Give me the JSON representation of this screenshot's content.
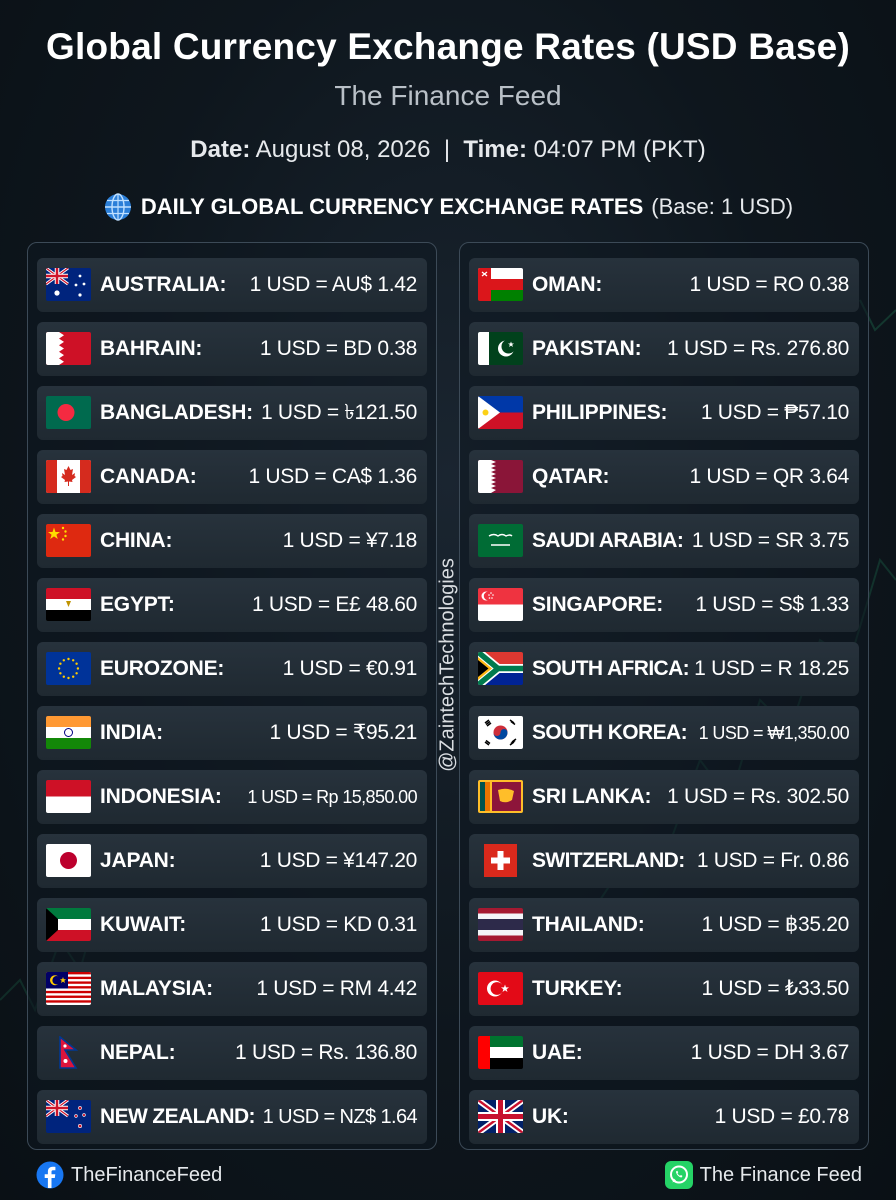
{
  "header": {
    "title": "Global Currency Exchange Rates (USD Base)",
    "subtitle": "The Finance Feed",
    "date_label": "Date:",
    "date_value": "August 08, 2026",
    "separator": "|",
    "time_label": "Time:",
    "time_value": "04:07 PM (PKT)",
    "headline": "DAILY GLOBAL CURRENCY EXCHANGE RATES",
    "headline_base": "(Base: 1 USD)",
    "headline_icon": "globe-icon"
  },
  "left_column": [
    {
      "country": "AUSTRALIA:",
      "rate": "1 USD = AU$ 1.42",
      "flag": "australia"
    },
    {
      "country": "BAHRAIN:",
      "rate": "1 USD = BD 0.38",
      "flag": "bahrain"
    },
    {
      "country": "BANGLADESH:",
      "rate": "1 USD = ৳121.50",
      "flag": "bangladesh"
    },
    {
      "country": "CANADA:",
      "rate": "1 USD = CA$ 1.36",
      "flag": "canada"
    },
    {
      "country": "CHINA:",
      "rate": "1 USD = ¥7.18",
      "flag": "china"
    },
    {
      "country": "EGYPT:",
      "rate": "1 USD = E£ 48.60",
      "flag": "egypt"
    },
    {
      "country": "EUROZONE:",
      "rate": "1 USD = €0.91",
      "flag": "eurozone"
    },
    {
      "country": "INDIA:",
      "rate": "1 USD = ₹95.21",
      "flag": "india"
    },
    {
      "country": "INDONESIA:",
      "rate": "1 USD = Rp 15,850.00",
      "flag": "indonesia"
    },
    {
      "country": "JAPAN:",
      "rate": "1 USD = ¥147.20",
      "flag": "japan"
    },
    {
      "country": "KUWAIT:",
      "rate": "1 USD = KD 0.31",
      "flag": "kuwait"
    },
    {
      "country": "MALAYSIA:",
      "rate": "1 USD = RM 4.42",
      "flag": "malaysia"
    },
    {
      "country": "NEPAL:",
      "rate": "1 USD = Rs. 136.80",
      "flag": "nepal"
    },
    {
      "country": "NEW ZEALAND:",
      "rate": "1 USD = NZ$ 1.64",
      "flag": "new-zealand"
    }
  ],
  "right_column": [
    {
      "country": "OMAN:",
      "rate": "1 USD = RO 0.38",
      "flag": "oman"
    },
    {
      "country": "PAKISTAN:",
      "rate": "1 USD = Rs. 276.80",
      "flag": "pakistan"
    },
    {
      "country": "PHILIPPINES:",
      "rate": "1 USD = ₱57.10",
      "flag": "philippines"
    },
    {
      "country": "QATAR:",
      "rate": "1 USD = QR 3.64",
      "flag": "qatar"
    },
    {
      "country": "SAUDI ARABIA:",
      "rate": "1 USD = SR 3.75",
      "flag": "saudi-arabia"
    },
    {
      "country": "SINGAPORE:",
      "rate": "1 USD = S$ 1.33",
      "flag": "singapore"
    },
    {
      "country": "SOUTH AFRICA:",
      "rate": "1 USD = R 18.25",
      "flag": "south-africa"
    },
    {
      "country": "SOUTH KOREA:",
      "rate": "1 USD = ₩1,350.00",
      "flag": "south-korea"
    },
    {
      "country": "SRI LANKA:",
      "rate": "1 USD = Rs. 302.50",
      "flag": "sri-lanka"
    },
    {
      "country": "SWITZERLAND:",
      "rate": "1 USD = Fr. 0.86",
      "flag": "switzerland"
    },
    {
      "country": "THAILAND:",
      "rate": "1 USD = ฿35.20",
      "flag": "thailand"
    },
    {
      "country": "TURKEY:",
      "rate": "1 USD = ₺33.50",
      "flag": "turkey"
    },
    {
      "country": "UAE:",
      "rate": "1 USD = DH 3.67",
      "flag": "uae"
    },
    {
      "country": "UK:",
      "rate": "1 USD = £0.78",
      "flag": "uk"
    }
  ],
  "watermark": "@ZaintechTechnologies",
  "footer": {
    "facebook_label": "TheFinanceFeed",
    "facebook_icon": "facebook-icon",
    "whatsapp_label": "The Finance Feed",
    "whatsapp_icon": "whatsapp-icon"
  },
  "colors": {
    "background": "#0e161d",
    "row": "#252f38",
    "panel_border": "#3c4a57",
    "accent_green": "#25d366",
    "facebook_blue": "#1877f2"
  }
}
